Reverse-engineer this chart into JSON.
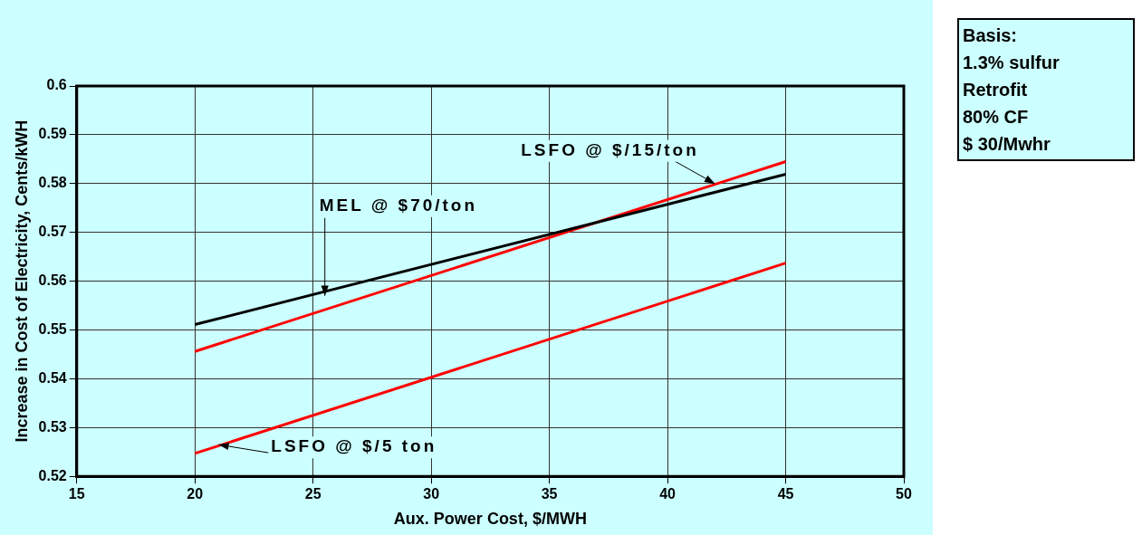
{
  "chart_data": {
    "type": "line",
    "xlabel": "Aux. Power Cost, $/MWH",
    "ylabel": "Increase in Cost of Electricity, Cents/kWH",
    "x": [
      20,
      45
    ],
    "series": [
      {
        "color": "#000000",
        "values": [
          0.5511,
          0.5819
        ]
      },
      {
        "color": "#ff0000",
        "values": [
          0.5456,
          0.5845
        ]
      },
      {
        "color": "#ff0000",
        "values": [
          0.5247,
          0.5637
        ]
      }
    ],
    "xlim": [
      15,
      50
    ],
    "xticks": [
      15,
      20,
      25,
      30,
      35,
      40,
      45,
      50
    ],
    "ylim": [
      0.52,
      0.6
    ],
    "yticks": [
      0.52,
      0.53,
      0.54,
      0.55,
      0.56,
      0.57,
      0.58,
      0.59,
      0.6
    ],
    "grid": true,
    "legend": false,
    "marker": "none",
    "line_style": "solid",
    "annotations": [
      {
        "text": "MEL @ $70/ton",
        "x": 25.5,
        "y": 0.557
      },
      {
        "text": "LSFO @ $/15/ton",
        "x": 42,
        "y": 0.58
      },
      {
        "text": "LSFO @ $/5 ton",
        "x": 21,
        "y": 0.5265
      },
      "Basis:\n1.3% sulfur\nRetrofit\n80% CF\n$ 30/Mwhr"
    ]
  }
}
